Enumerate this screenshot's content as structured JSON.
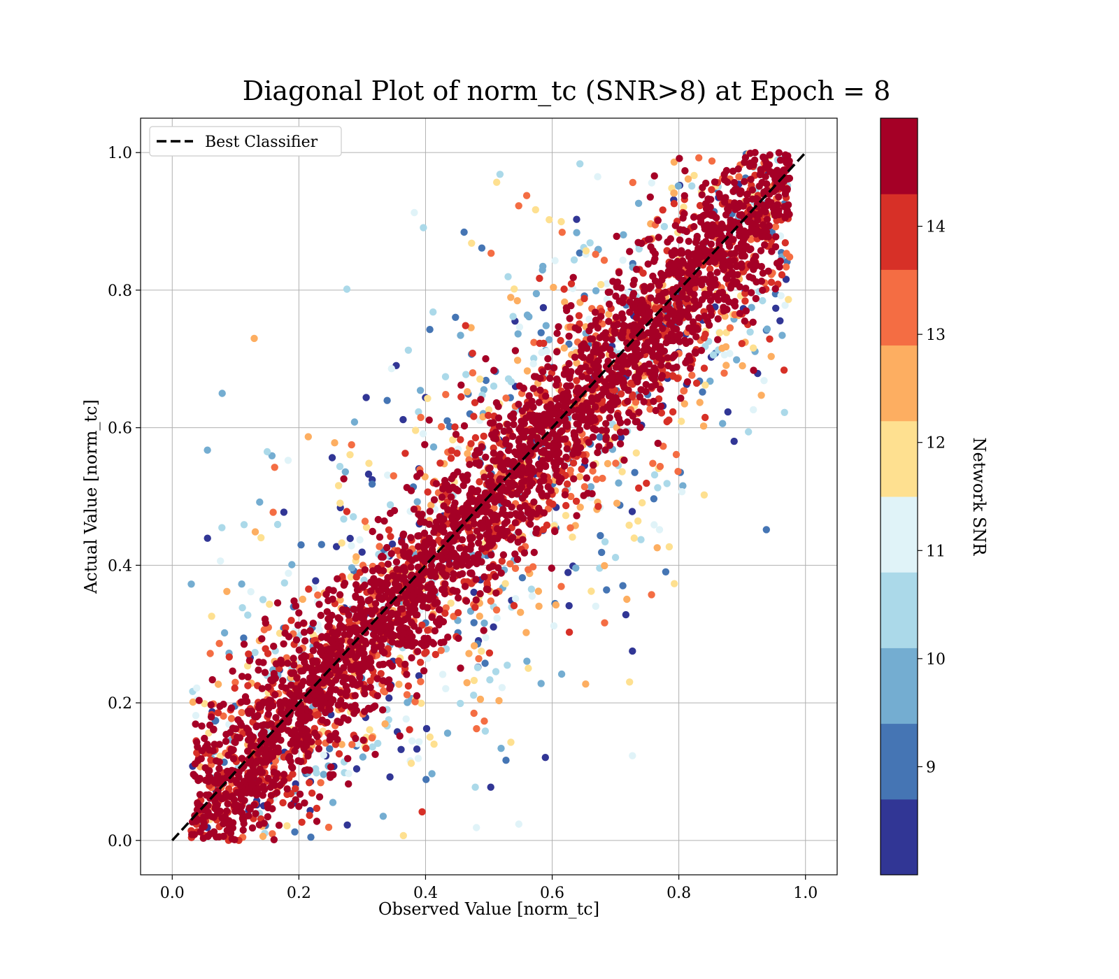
{
  "chart_data": {
    "type": "scatter",
    "title": "Diagonal Plot of norm_tc (SNR>8) at Epoch = 8",
    "xlabel": "Observed Value [norm_tc]",
    "ylabel": "Actual Value [norm_tc]",
    "xlim": [
      -0.05,
      1.05
    ],
    "ylim": [
      -0.05,
      1.05
    ],
    "x_ticks": [
      "0.0",
      "0.2",
      "0.4",
      "0.6",
      "0.8",
      "1.0"
    ],
    "y_ticks": [
      "0.0",
      "0.2",
      "0.4",
      "0.6",
      "0.8",
      "1.0"
    ],
    "grid": true,
    "legend": {
      "position": "top-left",
      "entries": [
        "Best Classifier"
      ]
    },
    "reference_line": {
      "name": "Best Classifier",
      "x": [
        0.0,
        1.0
      ],
      "y": [
        0.0,
        1.0
      ],
      "style": "dashed",
      "color": "#000000"
    },
    "colorbar": {
      "label": "Network SNR",
      "range": [
        8,
        15
      ],
      "tick_labels": [
        "9",
        "10",
        "11",
        "12",
        "13",
        "14"
      ],
      "tick_values": [
        9,
        10,
        11,
        12,
        13,
        14
      ],
      "colors": [
        "#313695",
        "#4575b4",
        "#74add1",
        "#abd9e9",
        "#e0f3f8",
        "#fee090",
        "#fdae61",
        "#f46d43",
        "#d73027",
        "#a50026"
      ]
    },
    "points": {
      "description_ref": "dense scatter of observed vs actual values clustered along the diagonal; high SNR points concentrated near y=x, low SNR points scattered further away",
      "count": 5200
    }
  }
}
